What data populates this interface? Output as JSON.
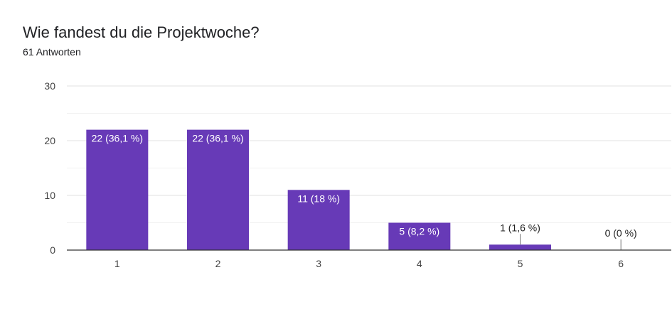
{
  "header": {
    "title": "Wie fandest du die Projektwoche?",
    "subtitle": "61 Antworten"
  },
  "chart_data": {
    "type": "bar",
    "categories": [
      "1",
      "2",
      "3",
      "4",
      "5",
      "6"
    ],
    "values": [
      22,
      22,
      11,
      5,
      1,
      0
    ],
    "data_labels": [
      "22 (36,1 %)",
      "22 (36,1 %)",
      "11 (18 %)",
      "5 (8,2 %)",
      "1 (1,6 %)",
      "0 (0 %)"
    ],
    "ylim": [
      0,
      30
    ],
    "yticks": [
      0,
      10,
      20,
      30
    ],
    "grid": true,
    "bar_color": "#673ab7",
    "title": "Wie fandest du die Projektwoche?",
    "xlabel": "",
    "ylabel": ""
  }
}
